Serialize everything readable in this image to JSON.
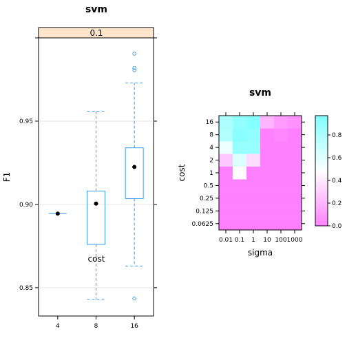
{
  "chart_data": [
    {
      "type": "box",
      "title": "svm",
      "panel_strip": "0.1",
      "xlabel": "cost",
      "ylabel": "F1",
      "categories": [
        "4",
        "8",
        "16"
      ],
      "ylim": [
        0.833,
        1.0
      ],
      "yticks": [
        0.85,
        0.9,
        0.95
      ],
      "ytick_labels": [
        "0.85",
        "0.90",
        "0.95"
      ],
      "boxes": [
        {
          "category": "4",
          "min": 0.8945,
          "q1": 0.8945,
          "median": 0.8945,
          "q3": 0.8945,
          "max": 0.8945,
          "outliers": []
        },
        {
          "category": "8",
          "min": 0.843,
          "q1": 0.876,
          "median": 0.9005,
          "q3": 0.908,
          "max": 0.956,
          "outliers": []
        },
        {
          "category": "16",
          "min": 0.863,
          "q1": 0.9035,
          "median": 0.9225,
          "q3": 0.934,
          "max": 0.973,
          "outliers": [
            0.8435,
            0.9805,
            0.982,
            0.9905
          ]
        }
      ],
      "colors": {
        "box": "#3a9cf0",
        "median_dot": "#000000",
        "strip_bg": "#ffe5cc"
      }
    },
    {
      "type": "heatmap",
      "title": "svm",
      "xlabel": "sigma",
      "ylabel": "cost",
      "x_categories": [
        "0.01",
        "0.1",
        "1",
        "10",
        "100",
        "1000"
      ],
      "y_categories": [
        "0.0625",
        "0.125",
        "0.25",
        "0.5",
        "1",
        "2",
        "4",
        "8",
        "16"
      ],
      "z": [
        [
          0.0,
          0.0,
          0.0,
          0.0,
          0.0,
          0.0
        ],
        [
          0.0,
          0.0,
          0.0,
          0.0,
          0.0,
          0.0
        ],
        [
          0.0,
          0.0,
          0.0,
          0.0,
          0.0,
          0.0
        ],
        [
          0.0,
          0.0,
          0.0,
          0.0,
          0.0,
          0.0
        ],
        [
          0.0,
          0.47,
          0.0,
          0.0,
          0.0,
          0.0
        ],
        [
          0.27,
          0.62,
          0.35,
          0.0,
          0.0,
          0.0
        ],
        [
          0.55,
          0.88,
          0.88,
          0.0,
          0.0,
          0.0
        ],
        [
          0.78,
          0.93,
          0.9,
          0.0,
          0.03,
          0.0
        ],
        [
          0.8,
          0.9,
          0.95,
          0.2,
          0.1,
          0.07
        ]
      ],
      "colorbar": {
        "min": 0.0,
        "max": 0.97,
        "ticks": [
          0.0,
          0.2,
          0.4,
          0.6,
          0.8
        ],
        "tick_labels": [
          "0.0",
          "0.2",
          "0.4",
          "0.6",
          "0.8"
        ]
      },
      "colors": {
        "low": "#ff80ff",
        "mid": "#ffffff",
        "high": "#80ffff"
      }
    }
  ]
}
